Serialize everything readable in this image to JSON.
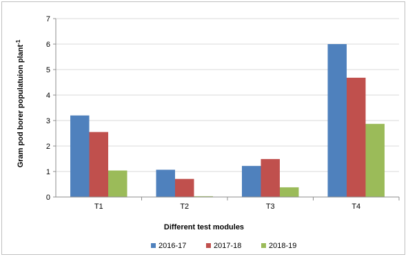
{
  "chart_data": {
    "type": "bar",
    "title": "",
    "xlabel": "Different test modules",
    "ylabel": "Gram pod borer populatuion plant",
    "ylabel_superscript": "-1",
    "categories": [
      "T1",
      "T2",
      "T3",
      "T4"
    ],
    "ylim": [
      0,
      7
    ],
    "yticks": [
      0,
      1,
      2,
      3,
      4,
      5,
      6,
      7
    ],
    "grid": true,
    "legend_position": "bottom",
    "series": [
      {
        "name": "2016-17",
        "color": "#4f81bd",
        "values": [
          3.2,
          1.07,
          1.22,
          6.0
        ]
      },
      {
        "name": "2017-18",
        "color": "#c0504d",
        "values": [
          2.55,
          0.71,
          1.49,
          4.68
        ]
      },
      {
        "name": "2018-19",
        "color": "#9bbb59",
        "values": [
          1.04,
          0.03,
          0.38,
          2.87
        ]
      }
    ]
  }
}
